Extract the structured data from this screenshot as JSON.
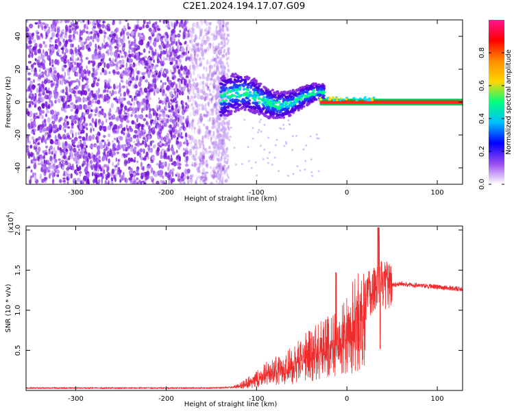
{
  "title": "C2E1.2024.194.17.07.G09",
  "colors": {
    "snr_line": "#ee2c2c",
    "background": "#ffffff",
    "colorbar_stops": [
      "#ffffff",
      "#9a4cf0",
      "#0000ff",
      "#00bfff",
      "#00ff7f",
      "#ffd700",
      "#ff8c00",
      "#ff0000",
      "#ff1493"
    ]
  },
  "chart_data": [
    {
      "type": "heatmap",
      "name": "spectrogram",
      "xlabel": "Height of straight line (km)",
      "ylabel": "Frequency (Hz)",
      "xlim": [
        -355,
        128
      ],
      "ylim": [
        -50,
        50
      ],
      "x_ticks": [
        -300,
        -200,
        -100,
        0,
        100
      ],
      "x_tick_labels": [
        "-300",
        "-200",
        "-100",
        "0",
        "100"
      ],
      "y_ticks": [
        -40,
        -20,
        0,
        20,
        40
      ],
      "y_tick_labels": [
        "-40",
        "-20",
        "0",
        "20",
        "40"
      ],
      "colorbar": {
        "label": "Normalized spectral amplitude",
        "range": [
          0,
          1
        ],
        "ticks": [
          0.0,
          0.2,
          0.4,
          0.6,
          0.8
        ],
        "tick_labels": [
          "0.0",
          "0.2",
          "0.4",
          "0.6",
          "0.8"
        ]
      },
      "regions": [
        {
          "x_range": [
            -355,
            -140
          ],
          "frequency_range": [
            -50,
            50
          ],
          "amplitude": "noise, ~0.1"
        },
        {
          "x_range": [
            -140,
            -30
          ],
          "frequency_center": [
            0,
            5
          ],
          "amplitude": "0.2-0.6"
        },
        {
          "x_range": [
            -30,
            128
          ],
          "frequency_center": 0,
          "amplitude": "0.8-1.0"
        }
      ]
    },
    {
      "type": "line",
      "name": "snr",
      "xlabel": "Height of straight line (km)",
      "ylabel": "SNR (10 * v/v)",
      "y_multiplier": "(x10",
      "y_multiplier_exp": "4",
      "y_multiplier_close": ")",
      "xlim": [
        -355,
        128
      ],
      "ylim": [
        0,
        2.05
      ],
      "x_ticks": [
        -300,
        -200,
        -100,
        0,
        100
      ],
      "x_tick_labels": [
        "-300",
        "-200",
        "-100",
        "0",
        "100"
      ],
      "y_ticks": [
        0.5,
        1.0,
        1.5,
        2.0
      ],
      "y_tick_labels": [
        "0.5",
        "1.0",
        "1.5",
        "2.0"
      ],
      "series": [
        {
          "x": [
            -355,
            -300,
            -250,
            -200,
            -150,
            -125,
            -115,
            -105,
            -95,
            -85,
            -75,
            -65,
            -55,
            -45,
            -35,
            -25,
            -15,
            -10,
            -5,
            0,
            10,
            20,
            25,
            30,
            35,
            40,
            50,
            60,
            70,
            80,
            90,
            100,
            110,
            120,
            128
          ],
          "y": [
            0.03,
            0.03,
            0.03,
            0.03,
            0.03,
            0.04,
            0.08,
            0.15,
            0.2,
            0.28,
            0.3,
            0.35,
            0.42,
            0.5,
            0.58,
            0.62,
            0.68,
            0.65,
            0.8,
            0.95,
            1.05,
            1.15,
            1.22,
            1.28,
            1.35,
            1.3,
            1.32,
            1.33,
            1.32,
            1.31,
            1.3,
            1.29,
            1.28,
            1.27,
            1.26
          ]
        }
      ]
    }
  ]
}
